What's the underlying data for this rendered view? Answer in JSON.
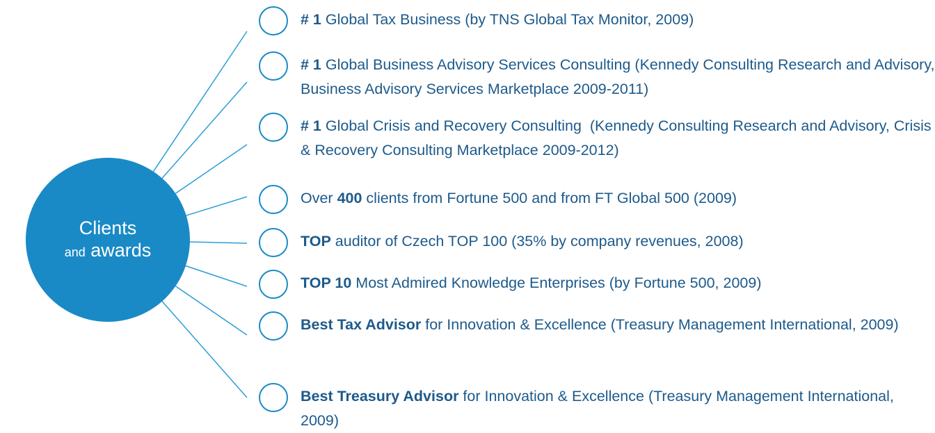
{
  "center": {
    "line1": "Clients",
    "small": "and",
    "line2": "awards"
  },
  "items": [
    {
      "parts": [
        {
          "text": "# 1",
          "bold": true
        },
        {
          "text": " Global Tax Business (by TNS Global Tax Monitor, 2009)",
          "bold": false
        }
      ]
    },
    {
      "parts": [
        {
          "text": "# 1",
          "bold": true
        },
        {
          "text": " Global Business Advisory Services Consulting (Kennedy Consulting Research and Advisory, Business Advisory Services Marketplace 2009-2011)",
          "bold": false
        }
      ]
    },
    {
      "parts": [
        {
          "text": "# 1",
          "bold": true
        },
        {
          "text": " Global Crisis and Recovery Consulting  (Kennedy Consulting Research and Advisory, Crisis & Recovery Consulting Marketplace 2009-2012)",
          "bold": false
        }
      ]
    },
    {
      "parts": [
        {
          "text": "Over ",
          "bold": false
        },
        {
          "text": "400",
          "bold": true
        },
        {
          "text": " clients from Fortune 500 and from FT Global 500 (2009)",
          "bold": false
        }
      ]
    },
    {
      "parts": [
        {
          "text": "TOP",
          "bold": true
        },
        {
          "text": " auditor of Czech TOP 100 (35% by company revenues, 2008)",
          "bold": false
        }
      ]
    },
    {
      "parts": [
        {
          "text": "TOP 10",
          "bold": true
        },
        {
          "text": " Most Admired Knowledge Enterprises (by Fortune 500, 2009)",
          "bold": false
        }
      ]
    },
    {
      "parts": [
        {
          "text": "Best Tax Advisor",
          "bold": true
        },
        {
          "text": " for Innovation & Excellence (Treasury Management International, 2009)",
          "bold": false
        }
      ]
    },
    {
      "parts": [
        {
          "text": "Best Treasury Advisor",
          "bold": true
        },
        {
          "text": " for Innovation & Excellence (Treasury Management International, 2009)",
          "bold": false
        }
      ]
    }
  ]
}
